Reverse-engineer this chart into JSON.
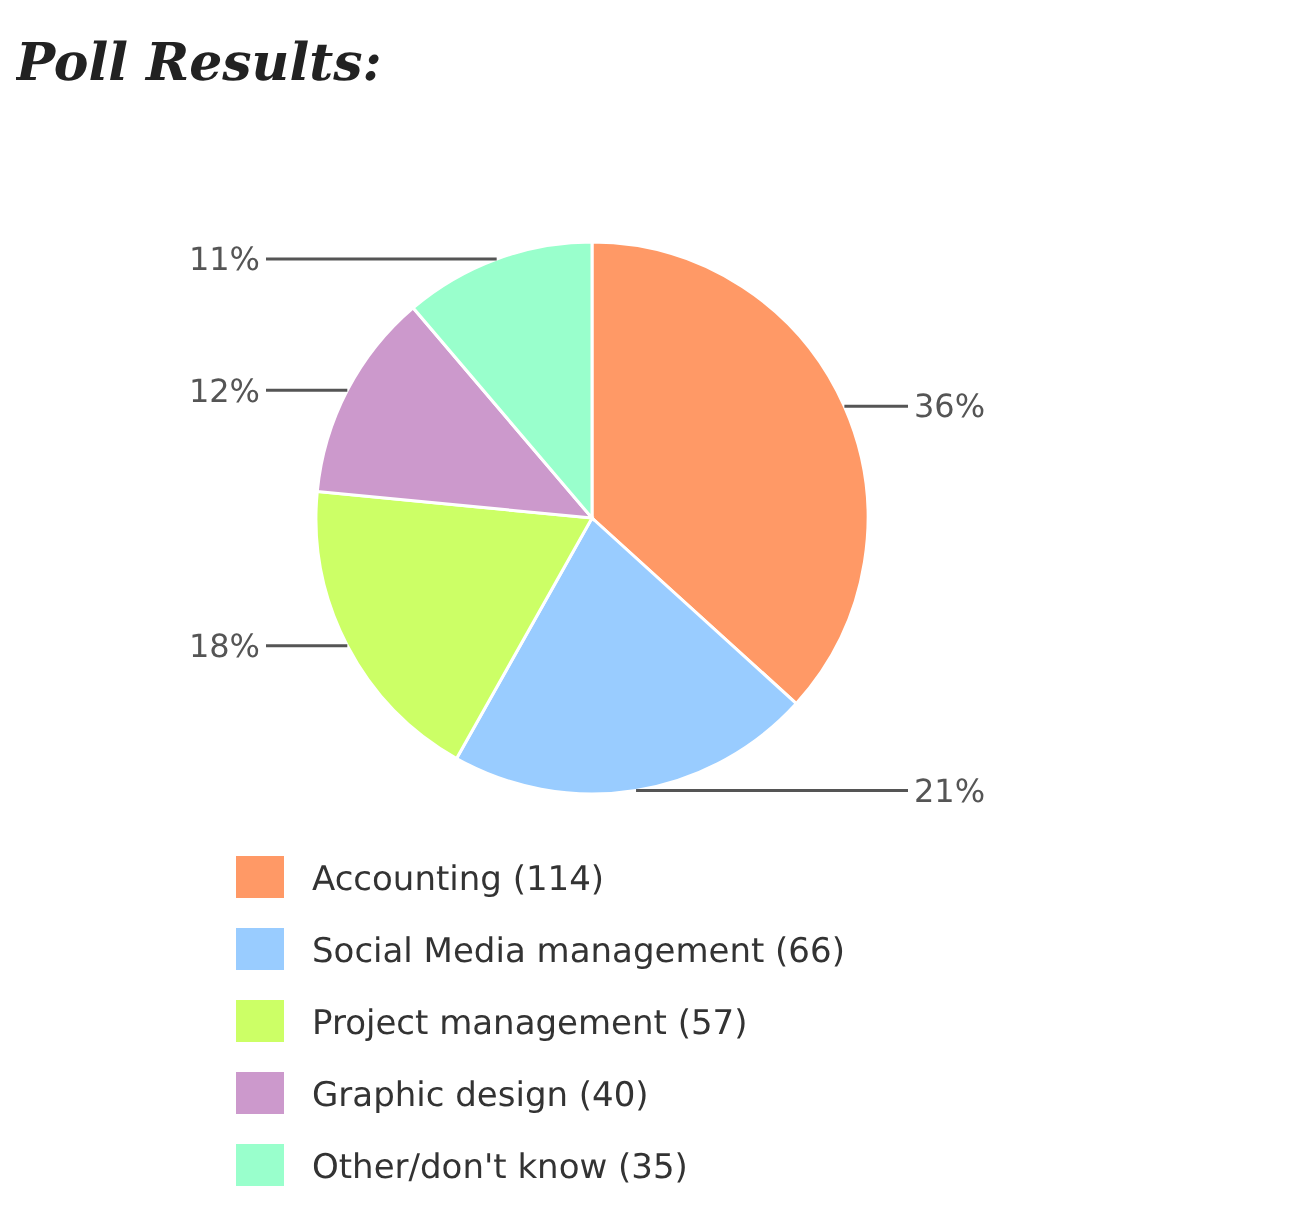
{
  "chart_data": {
    "type": "pie",
    "title": "Poll Results:",
    "categories": [
      "Accounting (114)",
      "Social Media management (66)",
      "Project management (57)",
      "Graphic design (40)",
      "Other/don't know (35)"
    ],
    "values": [
      36,
      21,
      18,
      12,
      11
    ],
    "value_labels": [
      "36%",
      "21%",
      "18%",
      "12%",
      "11%"
    ],
    "colors": [
      "#ff9966",
      "#99ccff",
      "#ccff66",
      "#cc99cc",
      "#99ffcc"
    ],
    "legend": "bottom"
  }
}
